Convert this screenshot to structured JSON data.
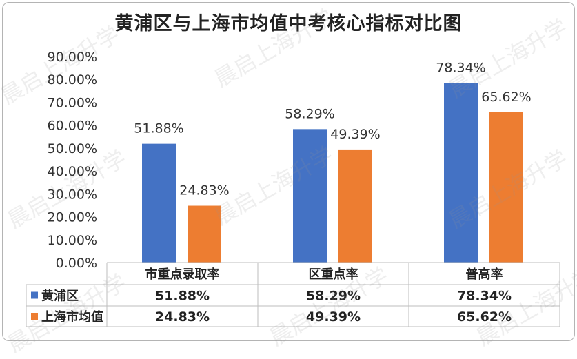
{
  "chart_data": {
    "type": "bar",
    "title": "黄浦区与上海市均值中考核心指标对比图",
    "categories": [
      "市重点录取率",
      "区重点率",
      "普高率"
    ],
    "series": [
      {
        "name": "黄浦区",
        "values": [
          51.88,
          58.29,
          78.34
        ],
        "labels": [
          "51.88%",
          "58.29%",
          "78.34%"
        ],
        "color": "#4472C4"
      },
      {
        "name": "上海市均值",
        "values": [
          24.83,
          49.39,
          65.62
        ],
        "labels": [
          "24.83%",
          "49.39%",
          "65.62%"
        ],
        "color": "#ED7D31"
      }
    ],
    "ylim": [
      0,
      90
    ],
    "yticks": [
      "0.00%",
      "10.00%",
      "20.00%",
      "30.00%",
      "40.00%",
      "50.00%",
      "60.00%",
      "70.00%",
      "80.00%",
      "90.00%"
    ],
    "grid": false,
    "data_table": true
  },
  "watermark": "晨启上海升学"
}
